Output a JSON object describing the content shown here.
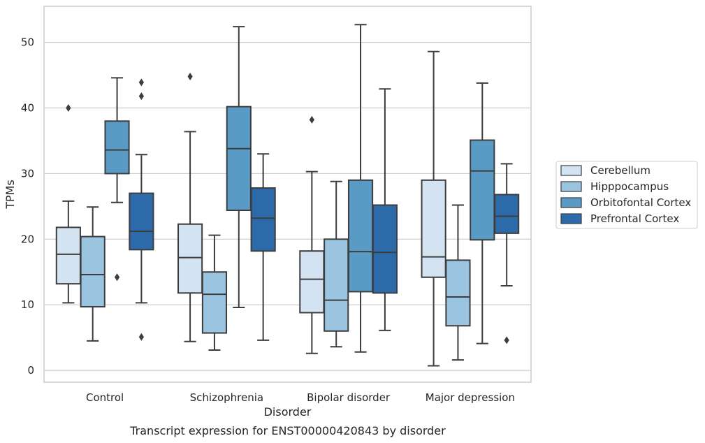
{
  "chart_data": {
    "type": "box",
    "caption": "Transcript expression for ENST00000420843 by disorder",
    "xlabel": "Disorder",
    "ylabel": "TPMs",
    "ylim": [
      -1.8,
      55.5
    ],
    "yticks": [
      0,
      10,
      20,
      30,
      40,
      50
    ],
    "grid": "horizontal",
    "legend_position": "right",
    "categories": [
      "Control",
      "Schizophrenia",
      "Bipolar disorder",
      "Major depression"
    ],
    "series": [
      {
        "name": "Cerebellum",
        "color": "#d3e3f1",
        "boxes": [
          {
            "whislo": 10.3,
            "q1": 13.2,
            "med": 17.7,
            "q3": 21.8,
            "whishi": 25.8,
            "fliers": [
              40.0
            ]
          },
          {
            "whislo": 4.4,
            "q1": 11.8,
            "med": 17.2,
            "q3": 22.3,
            "whishi": 36.4,
            "fliers": [
              44.8
            ]
          },
          {
            "whislo": 2.6,
            "q1": 8.8,
            "med": 13.9,
            "q3": 18.2,
            "whishi": 30.3,
            "fliers": [
              38.2
            ]
          },
          {
            "whislo": 0.7,
            "q1": 14.2,
            "med": 17.3,
            "q3": 29.0,
            "whishi": 48.6,
            "fliers": []
          }
        ]
      },
      {
        "name": "Hipppocampus",
        "color": "#9ac4e0",
        "boxes": [
          {
            "whislo": 4.5,
            "q1": 9.7,
            "med": 14.6,
            "q3": 20.4,
            "whishi": 24.9,
            "fliers": []
          },
          {
            "whislo": 3.1,
            "q1": 5.7,
            "med": 11.6,
            "q3": 15.0,
            "whishi": 20.6,
            "fliers": []
          },
          {
            "whislo": 3.6,
            "q1": 6.0,
            "med": 10.7,
            "q3": 20.0,
            "whishi": 28.8,
            "fliers": []
          },
          {
            "whislo": 1.6,
            "q1": 6.8,
            "med": 11.2,
            "q3": 16.8,
            "whishi": 25.2,
            "fliers": []
          }
        ]
      },
      {
        "name": "Orbitofontal Cortex",
        "color": "#5a9bc6",
        "boxes": [
          {
            "whislo": 25.6,
            "q1": 30.0,
            "med": 33.6,
            "q3": 38.0,
            "whishi": 44.6,
            "fliers": [
              14.2
            ]
          },
          {
            "whislo": 9.6,
            "q1": 24.4,
            "med": 33.8,
            "q3": 40.2,
            "whishi": 52.4,
            "fliers": []
          },
          {
            "whislo": 2.8,
            "q1": 12.0,
            "med": 18.1,
            "q3": 29.0,
            "whishi": 52.7,
            "fliers": []
          },
          {
            "whislo": 4.1,
            "q1": 19.9,
            "med": 30.4,
            "q3": 35.1,
            "whishi": 43.8,
            "fliers": []
          }
        ]
      },
      {
        "name": "Prefrontal Cortex",
        "color": "#2c6aa9",
        "boxes": [
          {
            "whislo": 10.3,
            "q1": 18.4,
            "med": 21.2,
            "q3": 27.0,
            "whishi": 32.9,
            "fliers": [
              5.1,
              41.8,
              43.9
            ]
          },
          {
            "whislo": 4.6,
            "q1": 18.2,
            "med": 23.2,
            "q3": 27.8,
            "whishi": 33.0,
            "fliers": []
          },
          {
            "whislo": 6.1,
            "q1": 11.8,
            "med": 18.0,
            "q3": 25.2,
            "whishi": 42.9,
            "fliers": []
          },
          {
            "whislo": 12.9,
            "q1": 20.9,
            "med": 23.5,
            "q3": 26.8,
            "whishi": 31.5,
            "fliers": [
              4.6
            ]
          }
        ]
      }
    ]
  }
}
